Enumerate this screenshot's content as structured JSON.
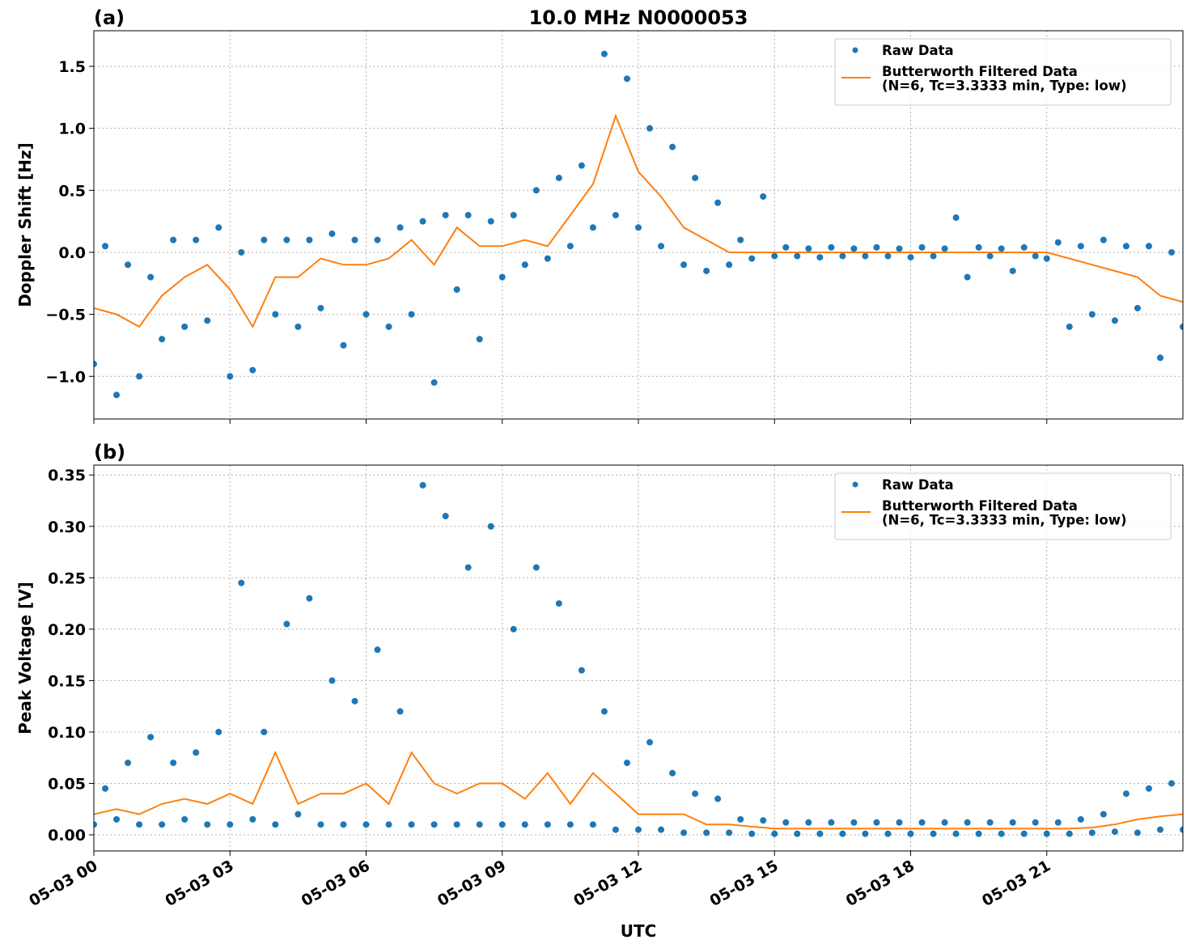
{
  "chart_data": [
    {
      "type": "line",
      "panel_label": "(a)",
      "title": "10.0 MHz N0000053",
      "ylabel": "Doppler Shift [Hz]",
      "xlim": [
        0,
        24
      ],
      "xticks": [
        0,
        3,
        6,
        9,
        12,
        15,
        18,
        21
      ],
      "ylim": [
        -1.344,
        1.787
      ],
      "yticks": [
        {
          "value": -1.0,
          "label": "−1.0"
        },
        {
          "value": -0.5,
          "label": "−0.5"
        },
        {
          "value": 0,
          "label": "0.0"
        },
        {
          "value": 0.5,
          "label": "0.5"
        },
        {
          "value": 1.0,
          "label": "1.0"
        },
        {
          "value": 1.5,
          "label": "1.5"
        }
      ],
      "grid": true,
      "legend": "upper right",
      "series": [
        {
          "name": "Raw Data",
          "kind": "scatter",
          "color": "#1f77b4",
          "x": [
            0,
            0.25,
            0.5,
            0.75,
            1,
            1.25,
            1.5,
            1.75,
            2,
            2.25,
            2.5,
            2.75,
            3,
            3.25,
            3.5,
            3.75,
            4,
            4.25,
            4.5,
            4.75,
            5,
            5.25,
            5.5,
            5.75,
            6,
            6.25,
            6.5,
            6.75,
            7,
            7.25,
            7.5,
            7.75,
            8,
            8.25,
            8.5,
            8.75,
            9,
            9.25,
            9.5,
            9.75,
            10,
            10.25,
            10.5,
            10.75,
            11,
            11.25,
            11.5,
            11.75,
            12,
            12.25,
            12.5,
            12.75,
            13,
            13.25,
            13.5,
            13.75,
            14,
            14.25,
            14.5,
            14.75,
            15,
            15.25,
            15.5,
            15.75,
            16,
            16.25,
            16.5,
            16.75,
            17,
            17.25,
            17.5,
            17.75,
            18,
            18.25,
            18.5,
            18.75,
            19,
            19.25,
            19.5,
            19.75,
            20,
            20.25,
            20.5,
            20.75,
            21,
            21.25,
            21.5,
            21.75,
            22,
            22.25,
            22.5,
            22.75,
            23,
            23.25,
            23.5,
            23.75,
            24
          ],
          "values": [
            -0.9,
            0.05,
            -1.15,
            -0.1,
            -1.0,
            -0.2,
            -0.7,
            0.1,
            -0.6,
            0.1,
            -0.55,
            0.2,
            -1.0,
            0.0,
            -0.95,
            0.1,
            -0.5,
            0.1,
            -0.6,
            0.1,
            -0.45,
            0.15,
            -0.75,
            0.1,
            -0.5,
            0.1,
            -0.6,
            0.2,
            -0.5,
            0.25,
            -1.05,
            0.3,
            -0.3,
            0.3,
            -0.7,
            0.25,
            -0.2,
            0.3,
            -0.1,
            0.5,
            -0.05,
            0.6,
            0.05,
            0.7,
            0.2,
            1.6,
            0.3,
            1.4,
            0.2,
            1.0,
            0.05,
            0.85,
            -0.1,
            0.6,
            -0.15,
            0.4,
            -0.1,
            0.1,
            -0.05,
            0.45,
            -0.03,
            0.04,
            -0.03,
            0.03,
            -0.04,
            0.04,
            -0.03,
            0.03,
            -0.03,
            0.04,
            -0.03,
            0.03,
            -0.04,
            0.04,
            -0.03,
            0.03,
            0.28,
            -0.2,
            0.04,
            -0.03,
            0.03,
            -0.15,
            0.04,
            -0.03,
            -0.05,
            0.08,
            -0.6,
            0.05,
            -0.5,
            0.1,
            -0.55,
            0.05,
            -0.45,
            0.05,
            -0.85,
            0.0,
            -0.6
          ]
        },
        {
          "name": "Butterworth Filtered Data\n(N=6, Tc=3.3333 min, Type: low)",
          "kind": "line",
          "color": "#ff7f0e",
          "x": [
            0,
            0.5,
            1,
            1.5,
            2,
            2.5,
            3,
            3.5,
            4,
            4.5,
            5,
            5.5,
            6,
            6.5,
            7,
            7.5,
            8,
            8.5,
            9,
            9.5,
            10,
            10.5,
            11,
            11.5,
            12,
            12.5,
            13,
            13.5,
            14,
            14.5,
            15,
            15.5,
            16,
            16.5,
            17,
            17.5,
            18,
            18.5,
            19,
            19.5,
            20,
            20.5,
            21,
            21.5,
            22,
            22.5,
            23,
            23.5,
            24
          ],
          "values": [
            -0.45,
            -0.5,
            -0.6,
            -0.35,
            -0.2,
            -0.1,
            -0.3,
            -0.6,
            -0.2,
            -0.2,
            -0.05,
            -0.1,
            -0.1,
            -0.05,
            0.1,
            -0.1,
            0.2,
            0.05,
            0.05,
            0.1,
            0.05,
            0.3,
            0.55,
            1.1,
            0.65,
            0.45,
            0.2,
            0.1,
            0,
            0,
            0,
            0,
            0,
            0,
            0,
            0,
            0,
            0,
            0,
            0,
            0,
            0,
            0,
            -0.05,
            -0.1,
            -0.15,
            -0.2,
            -0.35,
            -0.4
          ]
        }
      ]
    },
    {
      "type": "line",
      "panel_label": "(b)",
      "ylabel": "Peak Voltage [V]",
      "xlabel": "UTC",
      "xlim": [
        0,
        24
      ],
      "xticks": [
        {
          "value": 0,
          "label": "05-03 00"
        },
        {
          "value": 3,
          "label": "05-03 03"
        },
        {
          "value": 6,
          "label": "05-03 06"
        },
        {
          "value": 9,
          "label": "05-03 09"
        },
        {
          "value": 12,
          "label": "05-03 12"
        },
        {
          "value": 15,
          "label": "05-03 15"
        },
        {
          "value": 18,
          "label": "05-03 18"
        },
        {
          "value": 21,
          "label": "05-03 21"
        }
      ],
      "ylim": [
        -0.0157,
        0.3596
      ],
      "yticks": [
        {
          "value": 0,
          "label": "0.00"
        },
        0.05,
        {
          "value": 0.1,
          "label": "0.10"
        },
        0.15,
        {
          "value": 0.2,
          "label": "0.20"
        },
        0.25,
        {
          "value": 0.3,
          "label": "0.30"
        },
        0.35
      ],
      "grid": true,
      "legend": "upper right",
      "series": [
        {
          "name": "Raw Data",
          "kind": "scatter",
          "color": "#1f77b4",
          "x": [
            0,
            0.25,
            0.5,
            0.75,
            1,
            1.25,
            1.5,
            1.75,
            2,
            2.25,
            2.5,
            2.75,
            3,
            3.25,
            3.5,
            3.75,
            4,
            4.25,
            4.5,
            4.75,
            5,
            5.25,
            5.5,
            5.75,
            6,
            6.25,
            6.5,
            6.75,
            7,
            7.25,
            7.5,
            7.75,
            8,
            8.25,
            8.5,
            8.75,
            9,
            9.25,
            9.5,
            9.75,
            10,
            10.25,
            10.5,
            10.75,
            11,
            11.25,
            11.5,
            11.75,
            12,
            12.25,
            12.5,
            12.75,
            13,
            13.25,
            13.5,
            13.75,
            14,
            14.25,
            14.5,
            14.75,
            15,
            15.25,
            15.5,
            15.75,
            16,
            16.25,
            16.5,
            16.75,
            17,
            17.25,
            17.5,
            17.75,
            18,
            18.25,
            18.5,
            18.75,
            19,
            19.25,
            19.5,
            19.75,
            20,
            20.25,
            20.5,
            20.75,
            21,
            21.25,
            21.5,
            21.75,
            22,
            22.25,
            22.5,
            22.75,
            23,
            23.25,
            23.5,
            23.75,
            24
          ],
          "values": [
            0.01,
            0.045,
            0.015,
            0.07,
            0.01,
            0.095,
            0.01,
            0.07,
            0.015,
            0.08,
            0.01,
            0.1,
            0.01,
            0.245,
            0.015,
            0.1,
            0.01,
            0.205,
            0.02,
            0.23,
            0.01,
            0.15,
            0.01,
            0.13,
            0.01,
            0.18,
            0.01,
            0.12,
            0.01,
            0.34,
            0.01,
            0.31,
            0.01,
            0.26,
            0.01,
            0.3,
            0.01,
            0.2,
            0.01,
            0.26,
            0.01,
            0.225,
            0.01,
            0.16,
            0.01,
            0.12,
            0.005,
            0.07,
            0.005,
            0.09,
            0.005,
            0.06,
            0.002,
            0.04,
            0.002,
            0.035,
            0.002,
            0.015,
            0.001,
            0.014,
            0.001,
            0.012,
            0.001,
            0.012,
            0.001,
            0.012,
            0.001,
            0.012,
            0.001,
            0.012,
            0.001,
            0.012,
            0.001,
            0.012,
            0.001,
            0.012,
            0.001,
            0.012,
            0.001,
            0.012,
            0.001,
            0.012,
            0.001,
            0.012,
            0.001,
            0.012,
            0.001,
            0.015,
            0.002,
            0.02,
            0.003,
            0.04,
            0.002,
            0.045,
            0.005,
            0.05,
            0.005
          ]
        },
        {
          "name": "Butterworth Filtered Data\n(N=6, Tc=3.3333 min, Type: low)",
          "kind": "line",
          "color": "#ff7f0e",
          "x": [
            0,
            0.5,
            1,
            1.5,
            2,
            2.5,
            3,
            3.5,
            4,
            4.5,
            5,
            5.5,
            6,
            6.5,
            7,
            7.5,
            8,
            8.5,
            9,
            9.5,
            10,
            10.5,
            11,
            11.5,
            12,
            12.5,
            13,
            13.5,
            14,
            14.5,
            15,
            15.5,
            16,
            16.5,
            17,
            17.5,
            18,
            18.5,
            19,
            19.5,
            20,
            20.5,
            21,
            21.5,
            22,
            22.5,
            23,
            23.5,
            24
          ],
          "values": [
            0.02,
            0.025,
            0.02,
            0.03,
            0.035,
            0.03,
            0.04,
            0.03,
            0.08,
            0.03,
            0.04,
            0.04,
            0.05,
            0.03,
            0.08,
            0.05,
            0.04,
            0.05,
            0.05,
            0.035,
            0.06,
            0.03,
            0.06,
            0.04,
            0.02,
            0.02,
            0.02,
            0.01,
            0.01,
            0.008,
            0.006,
            0.006,
            0.006,
            0.006,
            0.006,
            0.006,
            0.006,
            0.006,
            0.006,
            0.006,
            0.006,
            0.006,
            0.006,
            0.006,
            0.007,
            0.01,
            0.015,
            0.018,
            0.02
          ]
        }
      ]
    }
  ]
}
